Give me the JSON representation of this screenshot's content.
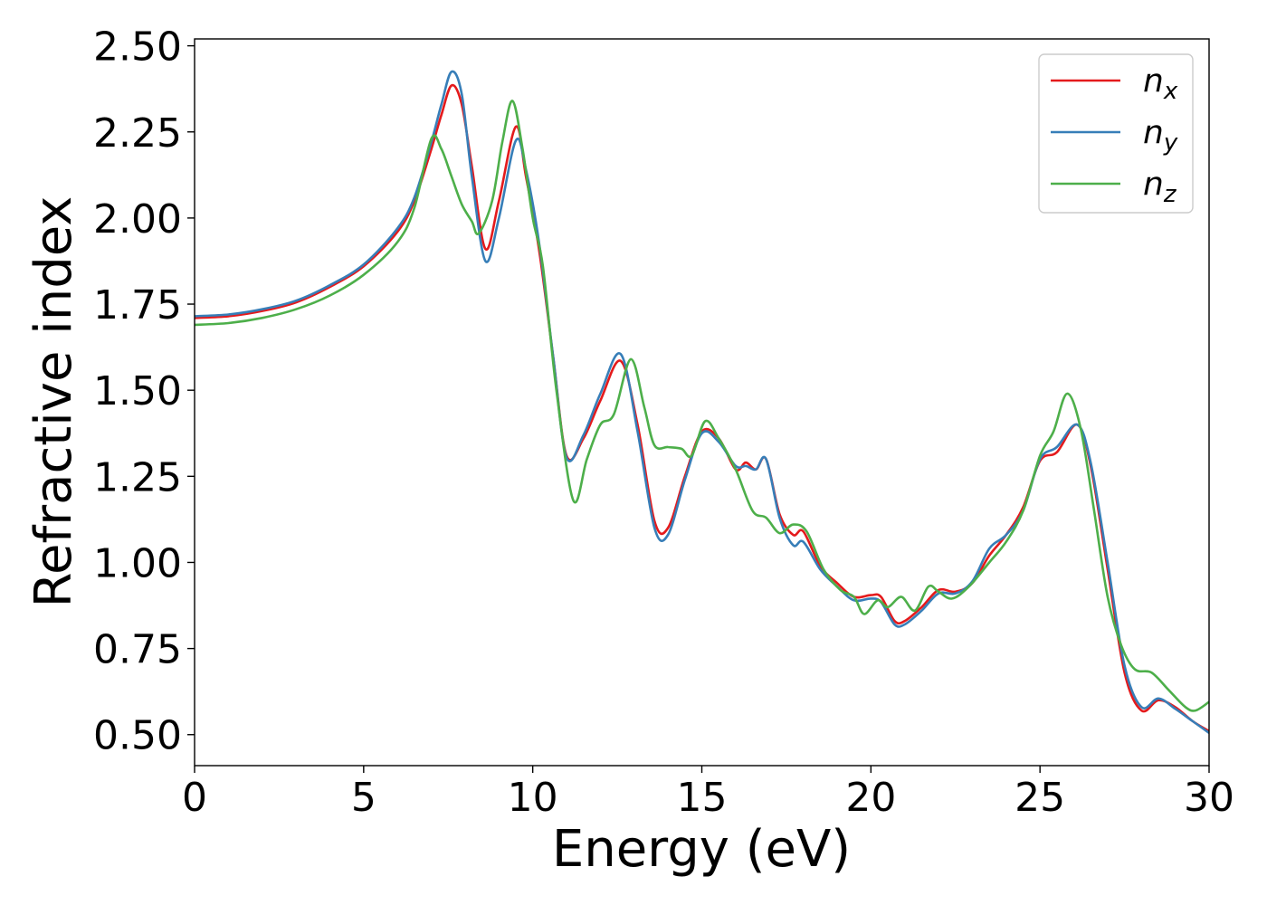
{
  "chart_data": {
    "type": "line",
    "title": "",
    "xlabel": "Energy (eV)",
    "ylabel": "Refractive index",
    "xlim": [
      0,
      30
    ],
    "ylim": [
      0.41,
      2.52
    ],
    "xticks": [
      0,
      5,
      10,
      15,
      20,
      25,
      30
    ],
    "xtick_labels": [
      "0",
      "5",
      "10",
      "15",
      "20",
      "25",
      "30"
    ],
    "yticks": [
      0.5,
      0.75,
      1.0,
      1.25,
      1.5,
      1.75,
      2.0,
      2.25,
      2.5
    ],
    "ytick_labels": [
      "0.50",
      "0.75",
      "1.00",
      "1.25",
      "1.50",
      "1.75",
      "2.00",
      "2.25",
      "2.50"
    ],
    "grid": false,
    "legend_position": "top-right",
    "series": [
      {
        "name": "n",
        "subscript": "x",
        "color": "#e41a1c",
        "points": [
          [
            0,
            1.71
          ],
          [
            1,
            1.715
          ],
          [
            2,
            1.73
          ],
          [
            3,
            1.755
          ],
          [
            4,
            1.8
          ],
          [
            5,
            1.86
          ],
          [
            6,
            1.96
          ],
          [
            6.5,
            2.05
          ],
          [
            7,
            2.2
          ],
          [
            7.3,
            2.3
          ],
          [
            7.6,
            2.385
          ],
          [
            7.9,
            2.33
          ],
          [
            8.2,
            2.15
          ],
          [
            8.6,
            1.91
          ],
          [
            9.0,
            2.05
          ],
          [
            9.5,
            2.265
          ],
          [
            9.8,
            2.12
          ],
          [
            10.2,
            1.9
          ],
          [
            10.6,
            1.6
          ],
          [
            11.0,
            1.31
          ],
          [
            11.5,
            1.36
          ],
          [
            12.0,
            1.47
          ],
          [
            12.6,
            1.585
          ],
          [
            13.1,
            1.4
          ],
          [
            13.6,
            1.12
          ],
          [
            14.0,
            1.1
          ],
          [
            14.5,
            1.25
          ],
          [
            15.0,
            1.38
          ],
          [
            15.5,
            1.36
          ],
          [
            16.0,
            1.27
          ],
          [
            16.3,
            1.29
          ],
          [
            16.6,
            1.27
          ],
          [
            16.9,
            1.3
          ],
          [
            17.3,
            1.14
          ],
          [
            17.7,
            1.08
          ],
          [
            18.0,
            1.09
          ],
          [
            18.5,
            0.99
          ],
          [
            19.0,
            0.94
          ],
          [
            19.5,
            0.9
          ],
          [
            20.0,
            0.905
          ],
          [
            20.3,
            0.9
          ],
          [
            20.7,
            0.83
          ],
          [
            21.0,
            0.83
          ],
          [
            21.5,
            0.87
          ],
          [
            22.0,
            0.92
          ],
          [
            22.5,
            0.915
          ],
          [
            23.0,
            0.94
          ],
          [
            23.5,
            1.02
          ],
          [
            24.0,
            1.08
          ],
          [
            24.5,
            1.16
          ],
          [
            25.0,
            1.295
          ],
          [
            25.5,
            1.32
          ],
          [
            26.1,
            1.4
          ],
          [
            26.5,
            1.28
          ],
          [
            27.0,
            0.98
          ],
          [
            27.5,
            0.68
          ],
          [
            28.0,
            0.57
          ],
          [
            28.5,
            0.6
          ],
          [
            29.0,
            0.58
          ],
          [
            29.5,
            0.54
          ],
          [
            30.0,
            0.51
          ]
        ]
      },
      {
        "name": "n",
        "subscript": "y",
        "color": "#377eb8",
        "points": [
          [
            0,
            1.715
          ],
          [
            1,
            1.72
          ],
          [
            2,
            1.735
          ],
          [
            3,
            1.76
          ],
          [
            4,
            1.805
          ],
          [
            5,
            1.865
          ],
          [
            6,
            1.97
          ],
          [
            6.5,
            2.06
          ],
          [
            7,
            2.22
          ],
          [
            7.3,
            2.33
          ],
          [
            7.6,
            2.425
          ],
          [
            7.9,
            2.36
          ],
          [
            8.2,
            2.12
          ],
          [
            8.6,
            1.875
          ],
          [
            9.0,
            2.0
          ],
          [
            9.5,
            2.225
          ],
          [
            9.8,
            2.14
          ],
          [
            10.2,
            1.92
          ],
          [
            10.6,
            1.6
          ],
          [
            11.0,
            1.305
          ],
          [
            11.5,
            1.37
          ],
          [
            12.0,
            1.49
          ],
          [
            12.6,
            1.605
          ],
          [
            13.1,
            1.38
          ],
          [
            13.6,
            1.1
          ],
          [
            14.0,
            1.08
          ],
          [
            14.5,
            1.24
          ],
          [
            15.0,
            1.375
          ],
          [
            15.5,
            1.35
          ],
          [
            16.0,
            1.28
          ],
          [
            16.3,
            1.28
          ],
          [
            16.6,
            1.27
          ],
          [
            16.9,
            1.3
          ],
          [
            17.3,
            1.13
          ],
          [
            17.7,
            1.05
          ],
          [
            18.0,
            1.06
          ],
          [
            18.5,
            0.98
          ],
          [
            19.0,
            0.93
          ],
          [
            19.5,
            0.89
          ],
          [
            20.0,
            0.895
          ],
          [
            20.3,
            0.885
          ],
          [
            20.7,
            0.82
          ],
          [
            21.0,
            0.82
          ],
          [
            21.5,
            0.86
          ],
          [
            22.0,
            0.91
          ],
          [
            22.5,
            0.91
          ],
          [
            23.0,
            0.945
          ],
          [
            23.5,
            1.04
          ],
          [
            24.0,
            1.08
          ],
          [
            24.5,
            1.15
          ],
          [
            25.0,
            1.3
          ],
          [
            25.5,
            1.335
          ],
          [
            26.1,
            1.4
          ],
          [
            26.5,
            1.29
          ],
          [
            27.0,
            1.0
          ],
          [
            27.5,
            0.7
          ],
          [
            28.0,
            0.58
          ],
          [
            28.5,
            0.605
          ],
          [
            29.0,
            0.575
          ],
          [
            29.5,
            0.54
          ],
          [
            30.0,
            0.505
          ]
        ]
      },
      {
        "name": "n",
        "subscript": "z",
        "color": "#4daf4a",
        "points": [
          [
            0,
            1.69
          ],
          [
            1,
            1.695
          ],
          [
            2,
            1.71
          ],
          [
            3,
            1.735
          ],
          [
            4,
            1.775
          ],
          [
            5,
            1.835
          ],
          [
            6,
            1.93
          ],
          [
            6.5,
            2.03
          ],
          [
            7.0,
            2.23
          ],
          [
            7.3,
            2.2
          ],
          [
            7.6,
            2.12
          ],
          [
            7.9,
            2.04
          ],
          [
            8.2,
            1.99
          ],
          [
            8.4,
            1.955
          ],
          [
            8.8,
            2.05
          ],
          [
            9.1,
            2.22
          ],
          [
            9.4,
            2.34
          ],
          [
            9.7,
            2.2
          ],
          [
            10.0,
            2.0
          ],
          [
            10.3,
            1.86
          ],
          [
            10.7,
            1.5
          ],
          [
            11.2,
            1.18
          ],
          [
            11.6,
            1.3
          ],
          [
            12.0,
            1.4
          ],
          [
            12.4,
            1.43
          ],
          [
            12.9,
            1.59
          ],
          [
            13.3,
            1.45
          ],
          [
            13.6,
            1.34
          ],
          [
            14.0,
            1.335
          ],
          [
            14.4,
            1.33
          ],
          [
            14.7,
            1.31
          ],
          [
            15.1,
            1.41
          ],
          [
            15.5,
            1.36
          ],
          [
            16.0,
            1.27
          ],
          [
            16.5,
            1.15
          ],
          [
            16.9,
            1.13
          ],
          [
            17.3,
            1.085
          ],
          [
            17.7,
            1.11
          ],
          [
            18.1,
            1.09
          ],
          [
            18.6,
            0.98
          ],
          [
            19.1,
            0.92
          ],
          [
            19.5,
            0.9
          ],
          [
            19.8,
            0.85
          ],
          [
            20.2,
            0.89
          ],
          [
            20.5,
            0.87
          ],
          [
            20.9,
            0.9
          ],
          [
            21.3,
            0.86
          ],
          [
            21.7,
            0.93
          ],
          [
            22.0,
            0.915
          ],
          [
            22.4,
            0.895
          ],
          [
            22.9,
            0.93
          ],
          [
            23.5,
            1.0
          ],
          [
            24.0,
            1.06
          ],
          [
            24.5,
            1.15
          ],
          [
            25.0,
            1.31
          ],
          [
            25.4,
            1.38
          ],
          [
            25.8,
            1.49
          ],
          [
            26.2,
            1.39
          ],
          [
            26.6,
            1.15
          ],
          [
            27.0,
            0.9
          ],
          [
            27.4,
            0.76
          ],
          [
            27.8,
            0.69
          ],
          [
            28.3,
            0.68
          ],
          [
            28.8,
            0.63
          ],
          [
            29.3,
            0.58
          ],
          [
            29.6,
            0.57
          ],
          [
            30.0,
            0.595
          ]
        ]
      }
    ]
  }
}
